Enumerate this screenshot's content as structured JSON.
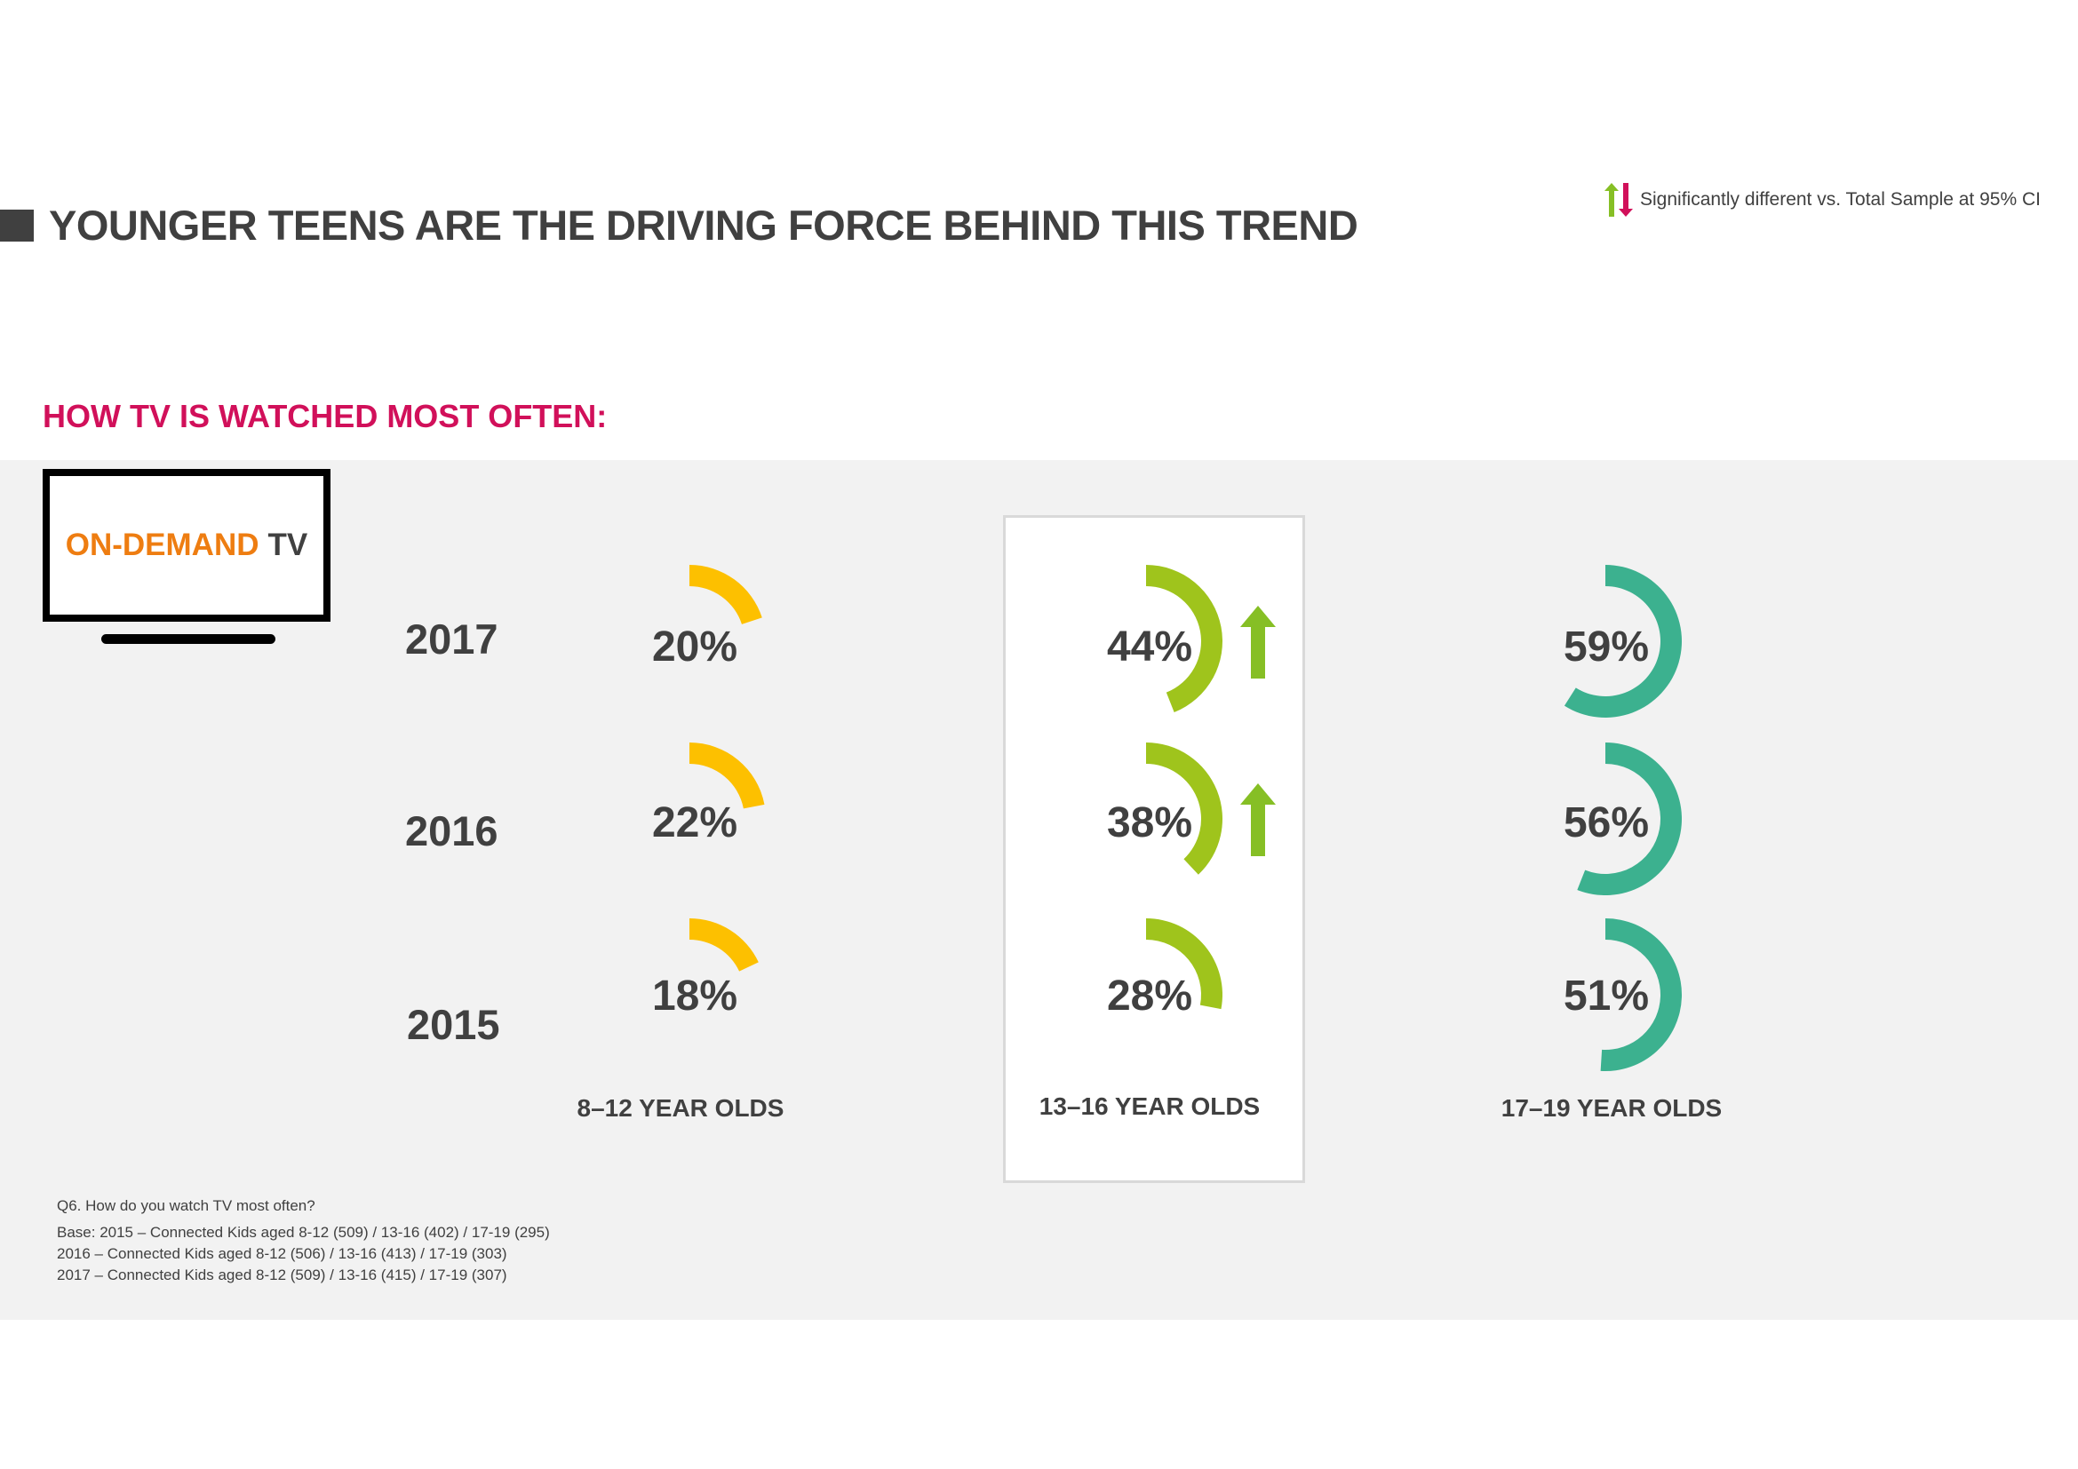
{
  "header": {
    "title": "YOUNGER TEENS ARE THE DRIVING FORCE BEHIND THIS TREND",
    "legend_text": "Significantly different vs. Total Sample at 95% CI"
  },
  "subtitle": "HOW TV IS WATCHED MOST OFTEN:",
  "tv_icon": {
    "label_primary": "ON-DEMAND",
    "label_secondary": "TV"
  },
  "colors": {
    "orange": "#fdc000",
    "lime": "#9fc41c",
    "teal": "#3cb18f",
    "accent": "#d1105a",
    "up_arrow": "#86bf25",
    "down_arrow": "#d1105a"
  },
  "chart_data": {
    "type": "radial-arc",
    "title": "HOW TV IS WATCHED MOST OFTEN: ON-DEMAND TV",
    "years": [
      "2017",
      "2016",
      "2015"
    ],
    "unit": "%",
    "series": [
      {
        "name": "8–12 YEAR OLDS",
        "values": [
          20,
          22,
          18
        ],
        "significant": [
          "none",
          "none",
          "none"
        ]
      },
      {
        "name": "13–16 YEAR OLDS",
        "values": [
          44,
          38,
          28
        ],
        "significant": [
          "up",
          "up",
          "none"
        ]
      },
      {
        "name": "17–19 YEAR OLDS",
        "values": [
          59,
          56,
          51
        ],
        "significant": [
          "none",
          "none",
          "none"
        ]
      }
    ]
  },
  "notes": {
    "question": "Q6. How do you watch TV most often?",
    "base_lines": [
      "Base: 2015 – Connected Kids aged 8-12 (509) / 13-16 (402) / 17-19 (295)",
      "2016 – Connected Kids aged 8-12 (506) / 13-16 (413) / 17-19 (303)",
      "2017 – Connected Kids aged 8-12 (509) / 13-16 (415) / 17-19 (307)"
    ]
  }
}
